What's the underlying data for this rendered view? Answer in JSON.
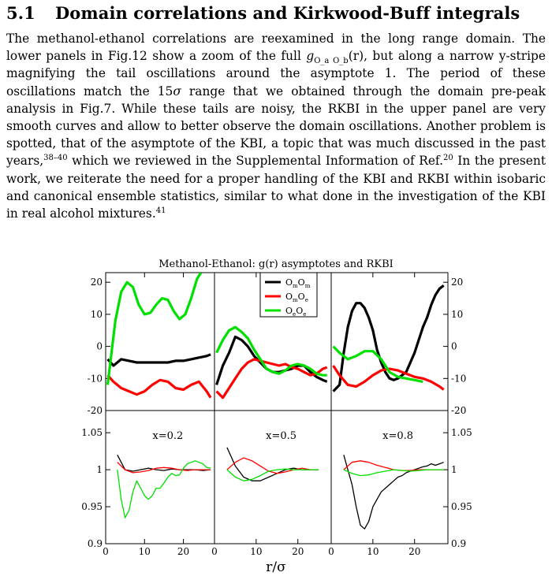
{
  "section": {
    "number": "5.1",
    "title": "Domain correlations and Kirkwood-Buff integrals"
  },
  "paragraph": {
    "s1": "The methanol-ethanol correlations are reexamined in the long range domain. The lower panels in Fig.12 show a zoom of the full ",
    "g_sym": "g",
    "g_sub": "O_a O_b",
    "g_arg": "(r)",
    "s2": ", but along a narrow y-stripe magnifying the tail oscillations around the asymptote 1. The period of these oscillations match the 15",
    "sigma": "σ",
    "s3": " range that we obtained through the domain pre-peak analysis in Fig.7. While these tails are noisy, the RKBI in the upper panel are very smooth curves and allow to better observe the domain oscillations. Another problem is spotted, that of the asymptote of the KBI, a topic that was much discussed in the past years,",
    "ref1": "38–40",
    "s4": " which we reviewed in the Supplemental Information of Ref.",
    "ref2": "20",
    "s5": " In the present work, we reiterate the need for a proper handling of the KBI and RKBI within isobaric and canonical ensemble statistics, similar to what done in the investigation of the KBI in real alcohol mixtures.",
    "ref3": "41"
  },
  "figure": {
    "title": "Methanol-Ethanol: g(r) asymptotes and RKBI",
    "xlabel": "r/σ",
    "x_ticks": [
      "0",
      "10",
      "20"
    ],
    "top_y_ticks": [
      "20",
      "10",
      "0",
      "-10",
      "-20"
    ],
    "bottom_y_ticks": [
      "1.05",
      "1",
      "0.95",
      "0.9"
    ],
    "panel_labels": [
      "x=0.2",
      "x=0.5",
      "x=0.8"
    ],
    "legend": {
      "mm": {
        "main": "O",
        "s1": "m",
        "main2": "O",
        "s2": "m"
      },
      "me": {
        "main": "O",
        "s1": "m",
        "main2": "O",
        "s2": "e"
      },
      "ee": {
        "main": "O",
        "s1": "e",
        "main2": "O",
        "s2": "e"
      }
    },
    "colors": {
      "mm": "#000000",
      "me": "#ff0000",
      "ee": "#00e000"
    }
  },
  "chart_data": {
    "type": "line",
    "title": "Methanol-Ethanol: g(r) asymptotes and RKBI",
    "xlabel": "r/σ",
    "xlim": [
      0,
      28
    ],
    "top_ylim": [
      -20,
      23
    ],
    "bottom_ylim": [
      0.9,
      1.08
    ],
    "series_names": [
      "OmOm",
      "OmOe",
      "OeOe"
    ],
    "rkbi_panels": [
      {
        "label": "x=0.2",
        "series": [
          {
            "name": "OmOm",
            "x": [
              0.5,
              2,
              4,
              6,
              8,
              10,
              12,
              14,
              16,
              18,
              20,
              22,
              24,
              26,
              27
            ],
            "y": [
              -4,
              -6,
              -4,
              -4.5,
              -5,
              -5,
              -5,
              -5,
              -5,
              -4.5,
              -4.5,
              -4,
              -3.5,
              -3,
              -2.5
            ]
          },
          {
            "name": "OmOe",
            "x": [
              0.5,
              2,
              4,
              6,
              8,
              10,
              12,
              14,
              16,
              18,
              20,
              22,
              24,
              26,
              27
            ],
            "y": [
              -9,
              -11,
              -13,
              -14,
              -15,
              -14,
              -12,
              -10.5,
              -11,
              -13,
              -13.5,
              -12,
              -11,
              -14,
              -16
            ]
          },
          {
            "name": "OeOe",
            "x": [
              0.5,
              1.5,
              2.5,
              4,
              5.5,
              7,
              8.5,
              10,
              11.5,
              13,
              14.5,
              16,
              17.5,
              19,
              20.5,
              22,
              23.5,
              24.5
            ],
            "y": [
              -12,
              -2,
              8,
              17,
              20,
              18.5,
              13,
              10,
              10.5,
              13,
              15,
              14.5,
              11,
              8.5,
              10,
              15,
              21,
              23
            ]
          }
        ]
      },
      {
        "label": "x=0.5",
        "series": [
          {
            "name": "OmOm",
            "x": [
              0.5,
              2,
              3.5,
              5,
              6.5,
              8,
              9.5,
              11,
              12.5,
              14,
              15.5,
              17,
              18.5,
              20,
              21.5,
              23,
              24.5,
              26,
              27
            ],
            "y": [
              -12,
              -6,
              -2,
              3,
              2,
              0,
              -3,
              -5,
              -7,
              -8,
              -8,
              -7.5,
              -7,
              -6,
              -6,
              -8,
              -9.5,
              -10.5,
              -11
            ]
          },
          {
            "name": "OmOe",
            "x": [
              0.5,
              2,
              3.5,
              5,
              6.5,
              8,
              9.5,
              11,
              12.5,
              14,
              15.5,
              17,
              18.5,
              20,
              21.5,
              23,
              24.5,
              26,
              27
            ],
            "y": [
              -14,
              -16,
              -13,
              -10,
              -7,
              -5,
              -4,
              -4.5,
              -5,
              -5.5,
              -6,
              -5.5,
              -6.5,
              -7,
              -8,
              -9,
              -8.5,
              -7,
              -6.5
            ]
          },
          {
            "name": "OeOe",
            "x": [
              0.5,
              2,
              3.5,
              5,
              6.5,
              8,
              9.5,
              11,
              12.5,
              14,
              15.5,
              17,
              18.5,
              20,
              21.5,
              23,
              24.5,
              26,
              27
            ],
            "y": [
              -2,
              2,
              5,
              6,
              4.5,
              2.5,
              -1,
              -4,
              -7,
              -8,
              -8.5,
              -7.5,
              -6,
              -5.5,
              -6,
              -7,
              -8.5,
              -9,
              -9
            ]
          }
        ]
      },
      {
        "label": "x=0.8",
        "series": [
          {
            "name": "OmOm",
            "x": [
              0.5,
              2,
              3,
              4,
              5,
              6,
              7,
              8,
              9,
              10,
              11,
              12,
              13,
              14,
              15,
              16,
              17,
              18,
              19,
              20,
              21,
              22,
              23,
              24,
              25,
              26,
              27
            ],
            "y": [
              -14,
              -12,
              -2,
              6,
              11,
              13.5,
              13.5,
              12,
              9,
              5,
              -1,
              -5,
              -8,
              -10,
              -10.5,
              -10,
              -9,
              -8,
              -5,
              -2,
              2,
              6,
              9,
              13,
              16,
              18,
              19
            ]
          },
          {
            "name": "OmOe",
            "x": [
              0.5,
              2,
              4,
              6,
              8,
              10,
              12,
              14,
              16,
              18,
              20,
              22,
              24,
              26,
              27
            ],
            "y": [
              -6,
              -9,
              -12,
              -12.5,
              -11,
              -9,
              -7.5,
              -7,
              -7.5,
              -8.5,
              -9.5,
              -10,
              -11,
              -12.5,
              -13.5
            ]
          },
          {
            "name": "OeOe",
            "x": [
              0.5,
              2,
              4,
              6,
              8,
              10,
              12,
              14,
              16,
              18,
              20,
              22
            ],
            "y": [
              0,
              -2,
              -4,
              -3,
              -1.5,
              -1.5,
              -4,
              -8,
              -9.5,
              -10,
              -10.5,
              -11
            ]
          }
        ]
      }
    ],
    "gr_panels": [
      {
        "label": "x=0.2",
        "series": [
          {
            "name": "OmOm",
            "x": [
              3,
              5,
              7,
              9,
              11,
              13,
              15,
              17,
              19,
              21,
              23,
              25,
              27
            ],
            "y": [
              1.02,
              1.0,
              0.998,
              1.0,
              1.002,
              1.0,
              0.999,
              1.001,
              1.0,
              1.0,
              1.0,
              0.999,
              1.0
            ]
          },
          {
            "name": "OmOe",
            "x": [
              3,
              5,
              7,
              9,
              11,
              13,
              15,
              17,
              19,
              21,
              23,
              25,
              27
            ],
            "y": [
              1.01,
              1.0,
              0.996,
              0.997,
              0.999,
              1.002,
              1.003,
              1.002,
              1.0,
              0.999,
              1.0,
              1.0,
              1.0
            ]
          },
          {
            "name": "OeOe",
            "x": [
              3,
              4,
              5,
              6,
              7,
              8,
              9,
              10,
              11,
              12,
              13,
              14,
              15,
              16,
              17,
              18,
              19,
              20,
              21,
              22,
              23,
              24,
              25,
              26,
              27
            ],
            "y": [
              1.0,
              0.96,
              0.935,
              0.945,
              0.97,
              0.985,
              0.975,
              0.965,
              0.96,
              0.965,
              0.975,
              0.975,
              0.982,
              0.99,
              0.995,
              0.992,
              0.993,
              1.002,
              1.008,
              1.01,
              1.012,
              1.01,
              1.008,
              1.003,
              1.002
            ]
          }
        ]
      },
      {
        "label": "x=0.5",
        "series": [
          {
            "name": "OmOm",
            "x": [
              3,
              5,
              7,
              9,
              11,
              13,
              15,
              17,
              19,
              21,
              23,
              25
            ],
            "y": [
              1.03,
              1.005,
              0.99,
              0.985,
              0.985,
              0.99,
              0.995,
              1.0,
              1.002,
              1.0,
              1.0,
              1.0
            ]
          },
          {
            "name": "OmOe",
            "x": [
              3,
              5,
              7,
              9,
              11,
              13,
              15,
              17,
              19,
              21,
              23,
              25
            ],
            "y": [
              1.0,
              1.01,
              1.016,
              1.012,
              1.005,
              0.998,
              0.995,
              0.997,
              1.0,
              1.002,
              1.0,
              1.0
            ]
          },
          {
            "name": "OeOe",
            "x": [
              3,
              5,
              7,
              9,
              11,
              13,
              15,
              17,
              19,
              21,
              23,
              25
            ],
            "y": [
              1.0,
              0.99,
              0.985,
              0.987,
              0.992,
              0.998,
              1.0,
              1.001,
              1.0,
              1.0,
              1.0,
              1.0
            ]
          }
        ]
      },
      {
        "label": "x=0.8",
        "series": [
          {
            "name": "OmOm",
            "x": [
              3,
              4,
              5,
              6,
              7,
              8,
              9,
              10,
              11,
              12,
              13,
              14,
              15,
              16,
              17,
              18,
              19,
              20,
              21,
              22,
              23,
              24,
              25,
              26,
              27
            ],
            "y": [
              1.02,
              1.0,
              0.98,
              0.95,
              0.925,
              0.92,
              0.93,
              0.95,
              0.96,
              0.97,
              0.975,
              0.98,
              0.985,
              0.99,
              0.992,
              0.996,
              0.998,
              1.0,
              1.002,
              1.004,
              1.005,
              1.008,
              1.006,
              1.008,
              1.01
            ]
          },
          {
            "name": "OmOe",
            "x": [
              3,
              5,
              7,
              9,
              11,
              13,
              15,
              17,
              19,
              21,
              23,
              25,
              27
            ],
            "y": [
              1.0,
              1.01,
              1.012,
              1.01,
              1.006,
              1.003,
              1.0,
              0.999,
              0.999,
              1.0,
              1.0,
              1.0,
              1.0
            ]
          },
          {
            "name": "OeOe",
            "x": [
              3,
              5,
              7,
              9,
              11,
              13,
              15,
              17,
              19,
              21,
              23,
              25,
              27
            ],
            "y": [
              1.0,
              0.995,
              0.992,
              0.993,
              0.996,
              0.998,
              1.0,
              0.999,
              0.998,
              0.999,
              1.0,
              1.0,
              1.0
            ]
          }
        ]
      }
    ]
  }
}
